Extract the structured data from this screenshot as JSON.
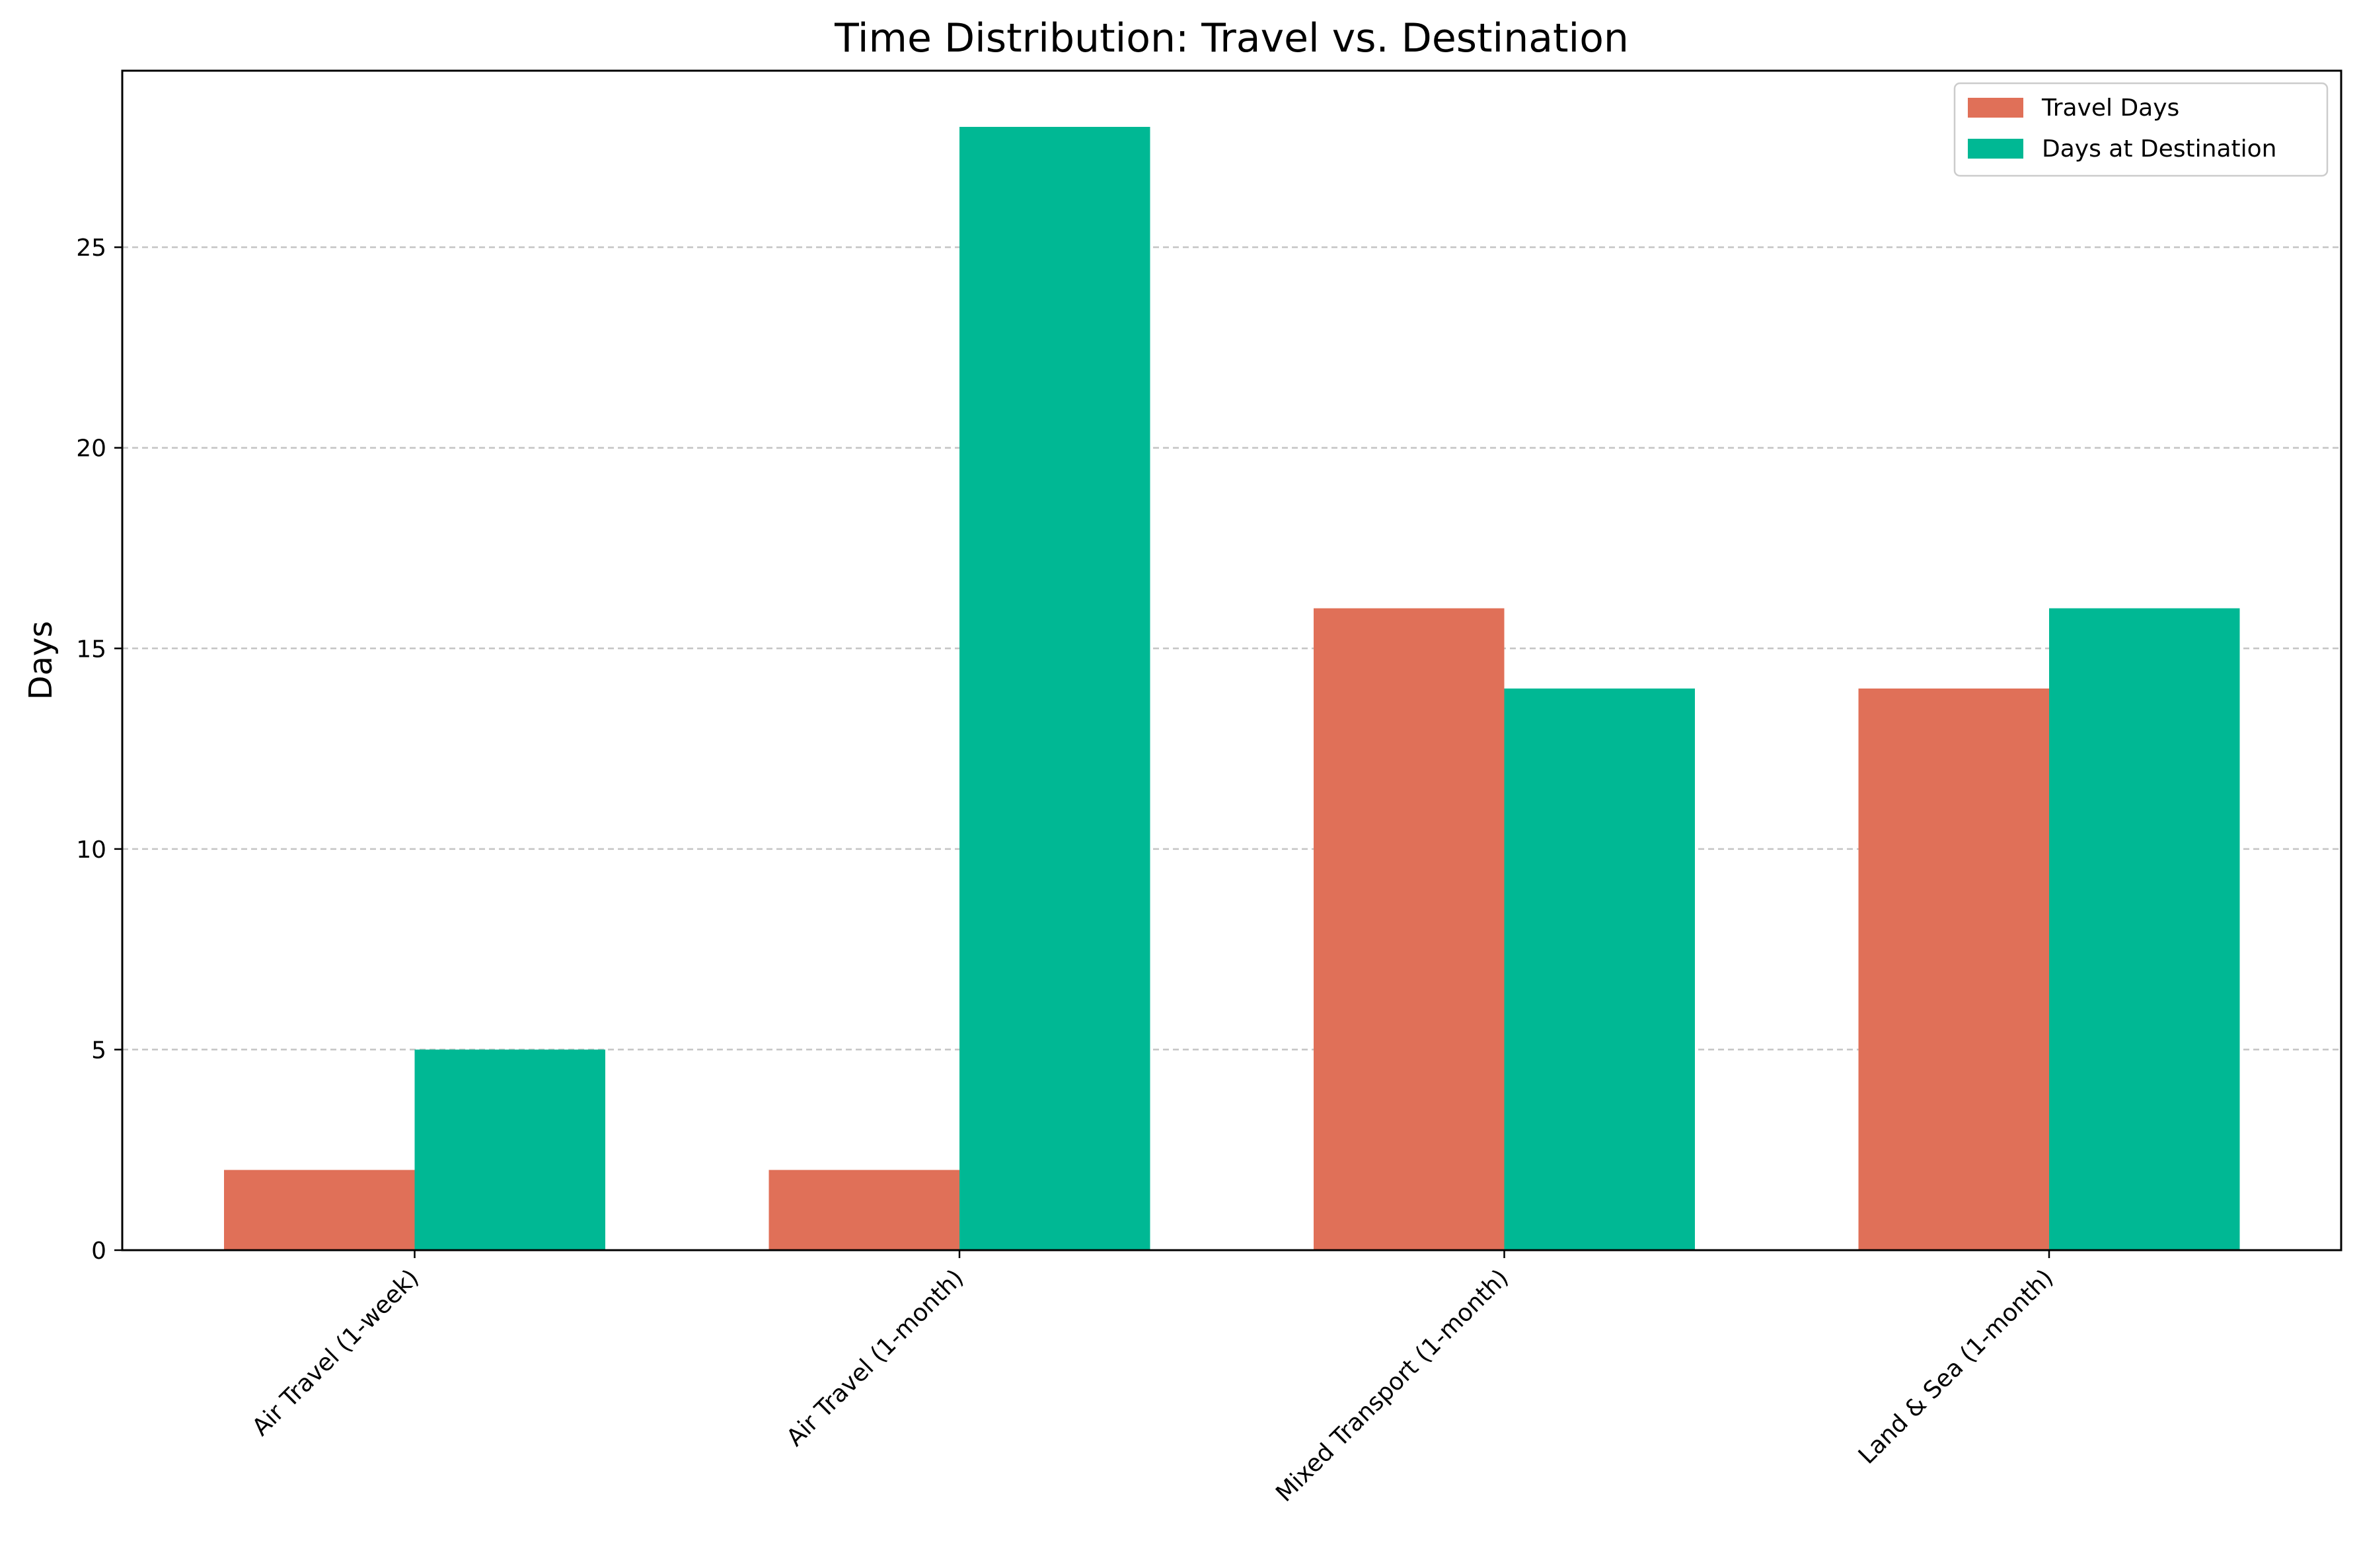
{
  "chart_data": {
    "type": "bar",
    "title": "Time Distribution: Travel vs. Destination",
    "xlabel": "",
    "ylabel": "Days",
    "categories": [
      "Air Travel (1-week)",
      "Air Travel (1-month)",
      "Mixed Transport (1-month)",
      "Land & Sea (1-month)"
    ],
    "series": [
      {
        "name": "Travel Days",
        "values": [
          2,
          2,
          16,
          14
        ],
        "color": "#e07058"
      },
      {
        "name": "Days at Destination",
        "values": [
          5,
          28,
          14,
          16
        ],
        "color": "#00b894"
      }
    ],
    "ylim": [
      0,
      29.4
    ],
    "yticks": [
      0,
      5,
      10,
      15,
      20,
      25
    ],
    "grid": "y-dashed",
    "legend_position": "top-right"
  }
}
